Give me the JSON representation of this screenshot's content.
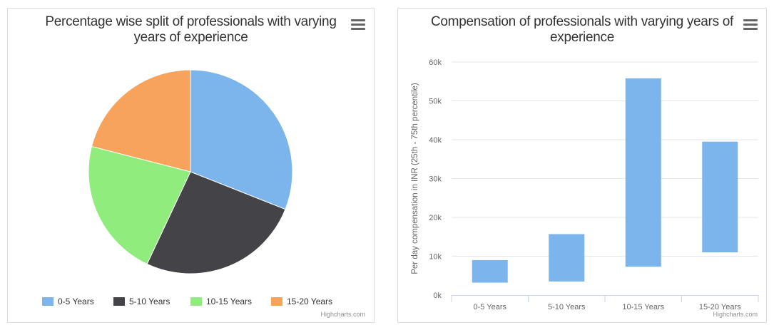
{
  "pie_panel": {
    "title_line1": "Percentage wise split of professionals with varying",
    "title_line2": "years of experience",
    "menu_icon": "hamburger-menu-icon",
    "credits": "Highcharts.com"
  },
  "bar_panel": {
    "title_line1": "Compensation of professionals with varying years of",
    "title_line2": "experience",
    "menu_icon": "hamburger-menu-icon",
    "credits": "Highcharts.com"
  },
  "chart_data": [
    {
      "type": "pie",
      "title": "Percentage wise split of professionals with varying years of experience",
      "categories": [
        "0-5 Years",
        "5-10 Years",
        "10-15 Years",
        "15-20 Years"
      ],
      "values": [
        31,
        26,
        22,
        21
      ],
      "colors": [
        "#7cb5ec",
        "#434348",
        "#90ed7d",
        "#f7a35c"
      ],
      "legend_position": "bottom"
    },
    {
      "type": "bar",
      "subtype": "columnrange",
      "title": "Compensation of professionals with varying years of experience",
      "categories": [
        "0-5 Years",
        "5-10 Years",
        "10-15 Years",
        "15-20 Years"
      ],
      "low": [
        3200,
        3500,
        7300,
        11000
      ],
      "high": [
        9000,
        15700,
        55800,
        39500
      ],
      "ylabel": "Per day compensation in INR (25th - 75th percentile)",
      "xlabel": "",
      "ylim": [
        0,
        60000
      ],
      "yticks": [
        "0k",
        "10k",
        "20k",
        "30k",
        "40k",
        "50k",
        "60k"
      ],
      "color": "#7cb5ec",
      "grid": true
    }
  ]
}
